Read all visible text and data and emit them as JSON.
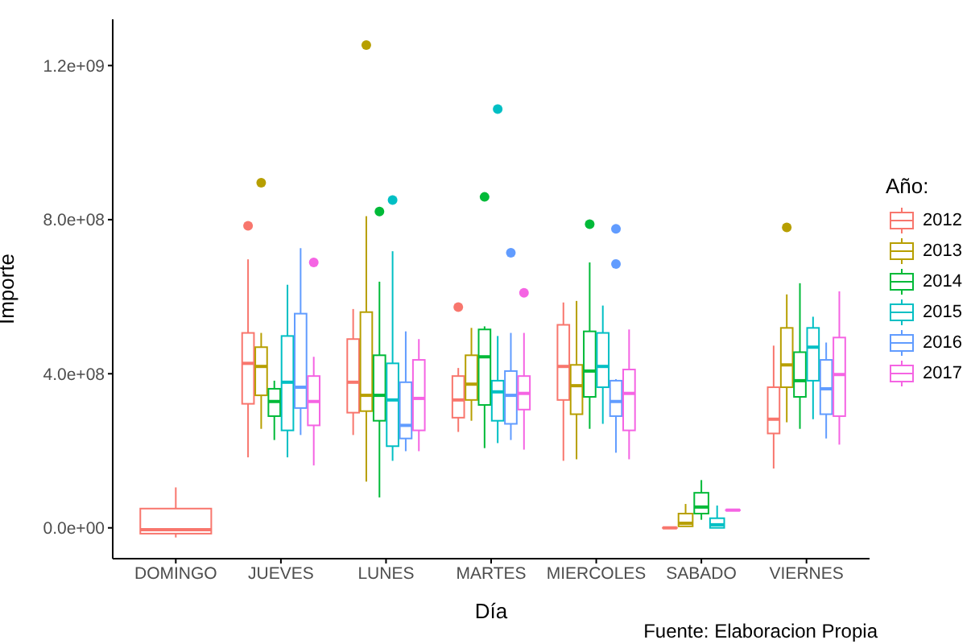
{
  "chart_data": {
    "type": "box",
    "xlabel": "Día",
    "ylabel": "Importe",
    "legend_title": "Año:",
    "legend": "right",
    "annotations": [
      "Fuente: Elaboracion Propia"
    ],
    "categories": [
      "DOMINGO",
      "JUEVES",
      "LUNES",
      "MARTES",
      "MIERCOLES",
      "SABADO",
      "VIERNES"
    ],
    "ylim": [
      -80000000.0,
      1320000000.0
    ],
    "yticks": [
      {
        "value": 0,
        "label": "0.0e+00"
      },
      {
        "value": 400000000.0,
        "label": "4.0e+08"
      },
      {
        "value": 800000000.0,
        "label": "8.0e+08"
      },
      {
        "value": 1200000000.0,
        "label": "1.2e+09"
      }
    ],
    "series": [
      {
        "name": "2012",
        "color": "#f8766d",
        "boxes": [
          {
            "low": -25000000.0,
            "q1": -15000000.0,
            "median": -5000000.0,
            "q3": 50000000.0,
            "high": 105000000.0
          },
          {
            "low": 183000000.0,
            "q1": 322000000.0,
            "median": 427000000.0,
            "q3": 506000000.0,
            "high": 697000000.0,
            "outliers": [
              784000000.0
            ]
          },
          {
            "low": 241000000.0,
            "q1": 299000000.0,
            "median": 378000000.0,
            "q3": 490000000.0,
            "high": 568000000.0
          },
          {
            "low": 249000000.0,
            "q1": 286000000.0,
            "median": 332000000.0,
            "q3": 394000000.0,
            "high": 415000000.0,
            "outliers": [
              573000000.0
            ]
          },
          {
            "low": 174000000.0,
            "q1": 332000000.0,
            "median": 419000000.0,
            "q3": 527000000.0,
            "high": 585000000.0
          },
          {
            "low": 0,
            "q1": 0,
            "median": 0,
            "q3": 0,
            "high": 0
          },
          {
            "low": 154000000.0,
            "q1": 245000000.0,
            "median": 282000000.0,
            "q3": 365000000.0,
            "high": 473000000.0
          }
        ]
      },
      {
        "name": "2013",
        "color": "#b79f00",
        "boxes": [
          null,
          {
            "low": 257000000.0,
            "q1": 344000000.0,
            "median": 419000000.0,
            "q3": 469000000.0,
            "high": 506000000.0,
            "outliers": [
              896000000.0
            ]
          },
          {
            "low": 120000000.0,
            "q1": 303000000.0,
            "median": 344000000.0,
            "q3": 560000000.0,
            "high": 809000000.0,
            "outliers": [
              1253000000.0
            ]
          },
          {
            "low": 278000000.0,
            "q1": 332000000.0,
            "median": 373000000.0,
            "q3": 448000000.0,
            "high": 519000000.0
          },
          {
            "low": 178000000.0,
            "q1": 295000000.0,
            "median": 369000000.0,
            "q3": 423000000.0,
            "high": 589000000.0
          },
          {
            "low": 4000000.0,
            "q1": 4000000.0,
            "median": 12000000.0,
            "q3": 37000000.0,
            "high": 62000000.0
          },
          {
            "low": 274000000.0,
            "q1": 365000000.0,
            "median": 423000000.0,
            "q3": 519000000.0,
            "high": 606000000.0,
            "outliers": [
              780000000.0
            ]
          }
        ]
      },
      {
        "name": "2014",
        "color": "#00ba38",
        "boxes": [
          null,
          {
            "low": 228000000.0,
            "q1": 290000000.0,
            "median": 328000000.0,
            "q3": 361000000.0,
            "high": 382000000.0
          },
          {
            "low": 79000000.0,
            "q1": 278000000.0,
            "median": 344000000.0,
            "q3": 448000000.0,
            "high": 639000000.0,
            "outliers": [
              821000000.0
            ]
          },
          {
            "low": 207000000.0,
            "q1": 319000000.0,
            "median": 444000000.0,
            "q3": 515000000.0,
            "high": 523000000.0,
            "outliers": [
              859000000.0
            ]
          },
          {
            "low": 257000000.0,
            "q1": 340000000.0,
            "median": 407000000.0,
            "q3": 510000000.0,
            "high": 689000000.0,
            "outliers": [
              788000000.0
            ]
          },
          {
            "low": 21000000.0,
            "q1": 37000000.0,
            "median": 54000000.0,
            "q3": 91000000.0,
            "high": 124000000.0
          },
          {
            "low": 257000000.0,
            "q1": 340000000.0,
            "median": 382000000.0,
            "q3": 456000000.0,
            "high": 635000000.0
          }
        ]
      },
      {
        "name": "2015",
        "color": "#00bfc4",
        "boxes": [
          null,
          {
            "low": 183000000.0,
            "q1": 253000000.0,
            "median": 378000000.0,
            "q3": 498000000.0,
            "high": 631000000.0
          },
          {
            "low": 174000000.0,
            "q1": 212000000.0,
            "median": 332000000.0,
            "q3": 427000000.0,
            "high": 718000000.0,
            "outliers": [
              851000000.0
            ]
          },
          {
            "low": 220000000.0,
            "q1": 278000000.0,
            "median": 353000000.0,
            "q3": 382000000.0,
            "high": 498000000.0,
            "outliers": [
              1087000000.0
            ]
          },
          {
            "low": 270000000.0,
            "q1": 365000000.0,
            "median": 419000000.0,
            "q3": 506000000.0,
            "high": 577000000.0
          },
          {
            "low": 0,
            "q1": 0,
            "median": 8000000.0,
            "q3": 25000000.0,
            "high": 58000000.0
          },
          {
            "low": 282000000.0,
            "q1": 382000000.0,
            "median": 469000000.0,
            "q3": 519000000.0,
            "high": 548000000.0
          }
        ]
      },
      {
        "name": "2016",
        "color": "#619cff",
        "boxes": [
          null,
          {
            "low": 241000000.0,
            "q1": 311000000.0,
            "median": 365000000.0,
            "q3": 556000000.0,
            "high": 726000000.0
          },
          {
            "low": 199000000.0,
            "q1": 232000000.0,
            "median": 266000000.0,
            "q3": 378000000.0,
            "high": 510000000.0
          },
          {
            "low": 228000000.0,
            "q1": 270000000.0,
            "median": 344000000.0,
            "q3": 407000000.0,
            "high": 506000000.0,
            "outliers": [
              714000000.0
            ]
          },
          {
            "low": 195000000.0,
            "q1": 290000000.0,
            "median": 328000000.0,
            "q3": 382000000.0,
            "high": 386000000.0,
            "outliers": [
              776000000.0,
              685000000.0
            ]
          },
          null,
          {
            "low": 232000000.0,
            "q1": 295000000.0,
            "median": 361000000.0,
            "q3": 436000000.0,
            "high": 481000000.0
          }
        ]
      },
      {
        "name": "2017",
        "color": "#f564e3",
        "boxes": [
          null,
          {
            "low": 162000000.0,
            "q1": 266000000.0,
            "median": 328000000.0,
            "q3": 394000000.0,
            "high": 444000000.0,
            "outliers": [
              689000000.0
            ]
          },
          {
            "low": 199000000.0,
            "q1": 253000000.0,
            "median": 336000000.0,
            "q3": 436000000.0,
            "high": 490000000.0
          },
          {
            "low": 203000000.0,
            "q1": 307000000.0,
            "median": 349000000.0,
            "q3": 394000000.0,
            "high": 506000000.0,
            "outliers": [
              610000000.0
            ]
          },
          {
            "low": 178000000.0,
            "q1": 253000000.0,
            "median": 349000000.0,
            "q3": 411000000.0,
            "high": 515000000.0
          },
          {
            "low": 46000000.0,
            "q1": 46000000.0,
            "median": 46000000.0,
            "q3": 46000000.0,
            "high": 46000000.0
          },
          {
            "low": 216000000.0,
            "q1": 290000000.0,
            "median": 398000000.0,
            "q3": 494000000.0,
            "high": 614000000.0
          }
        ]
      }
    ]
  }
}
